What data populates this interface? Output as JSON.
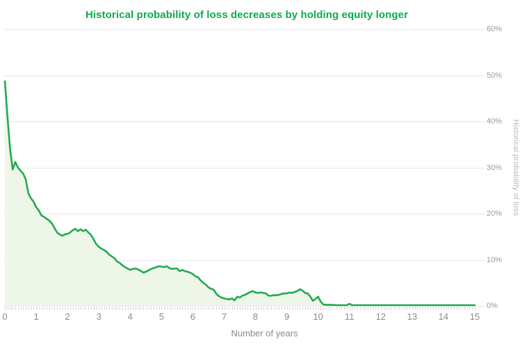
{
  "chart": {
    "title": "Historical probability of loss decreases by holding equity longer",
    "x_axis": {
      "label": "Number of years",
      "tick_labels": [
        "0",
        "1",
        "2",
        "3",
        "4",
        "5",
        "6",
        "7",
        "8",
        "9",
        "10",
        "11",
        "12",
        "13",
        "14",
        "15"
      ],
      "tick_values": [
        0,
        1,
        2,
        3,
        4,
        5,
        6,
        7,
        8,
        9,
        10,
        11,
        12,
        13,
        14,
        15
      ]
    },
    "y_axis": {
      "label": "Historical probability of loss",
      "tick_labels": [
        "0%",
        "10%",
        "20%",
        "30%",
        "40%",
        "50%",
        "60%"
      ],
      "tick_values": [
        0,
        10,
        20,
        30,
        40,
        50,
        60
      ]
    },
    "colors": {
      "title_green": "#0AAB50",
      "line_green": "#22AA4F",
      "area_fill": "#EEF5E9",
      "gridline": "#E6E6E6",
      "minor_tick": "#D2D2D2",
      "y_tick_label": "#999999",
      "x_tick_label": "#8A8A8A",
      "x_axis_title": "#8A8A8A",
      "y_axis_title": "#B8B8B8",
      "background": "#FFFFFF"
    }
  },
  "chart_data": {
    "type": "area",
    "title": "Historical probability of loss decreases by holding equity longer",
    "xlabel": "Number of years",
    "ylabel": "Historical probability of loss",
    "xlim": [
      0,
      15
    ],
    "ylim": [
      0,
      60
    ],
    "y_unit": "percent",
    "x_unit": "years",
    "x_step_years": 0.0833333,
    "grid": "horizontal",
    "legend": "none",
    "series": [
      {
        "name": "Historical probability of loss",
        "values": [
          48.7,
          41.0,
          34.0,
          29.6,
          31.2,
          30.0,
          29.3,
          28.7,
          27.4,
          24.4,
          23.3,
          22.6,
          21.4,
          20.7,
          19.6,
          19.3,
          18.9,
          18.5,
          17.9,
          16.9,
          15.9,
          15.5,
          15.2,
          15.5,
          15.6,
          15.9,
          16.4,
          16.7,
          16.2,
          16.6,
          16.2,
          16.5,
          15.9,
          15.4,
          14.4,
          13.4,
          12.8,
          12.4,
          12.1,
          11.7,
          11.1,
          10.7,
          10.3,
          9.6,
          9.3,
          8.8,
          8.4,
          8.1,
          7.8,
          8.0,
          8.1,
          7.9,
          7.6,
          7.2,
          7.4,
          7.7,
          8.0,
          8.2,
          8.4,
          8.6,
          8.5,
          8.4,
          8.6,
          8.2,
          8.0,
          8.1,
          8.1,
          7.5,
          7.8,
          7.5,
          7.4,
          7.2,
          6.9,
          6.4,
          6.2,
          5.5,
          5.0,
          4.6,
          4.0,
          3.7,
          3.5,
          2.6,
          2.1,
          1.8,
          1.6,
          1.5,
          1.4,
          1.6,
          1.2,
          2.0,
          1.8,
          2.2,
          2.4,
          2.7,
          3.0,
          3.2,
          2.9,
          2.8,
          2.9,
          2.8,
          2.7,
          2.2,
          2.2,
          2.3,
          2.3,
          2.4,
          2.6,
          2.7,
          2.7,
          2.9,
          2.8,
          3.0,
          3.2,
          3.6,
          3.3,
          2.8,
          2.7,
          2.0,
          1.1,
          1.5,
          2.0,
          0.9,
          0.3,
          0.2,
          0.25,
          0.2,
          0.2,
          0.15,
          0.15,
          0.15,
          0.15,
          0.15,
          0.45,
          0.15,
          0.15,
          0.15,
          0.15,
          0.15,
          0.15,
          0.15,
          0.15,
          0.15,
          0.15,
          0.15,
          0.15,
          0.15,
          0.15,
          0.15,
          0.15,
          0.15,
          0.15,
          0.15,
          0.15,
          0.15,
          0.15,
          0.15,
          0.15,
          0.15,
          0.15,
          0.15,
          0.15,
          0.15,
          0.15,
          0.15,
          0.15,
          0.15,
          0.15,
          0.15,
          0.15,
          0.15,
          0.15,
          0.15,
          0.15,
          0.15,
          0.15,
          0.15,
          0.15,
          0.15,
          0.15,
          0.15,
          0.15
        ]
      }
    ]
  }
}
